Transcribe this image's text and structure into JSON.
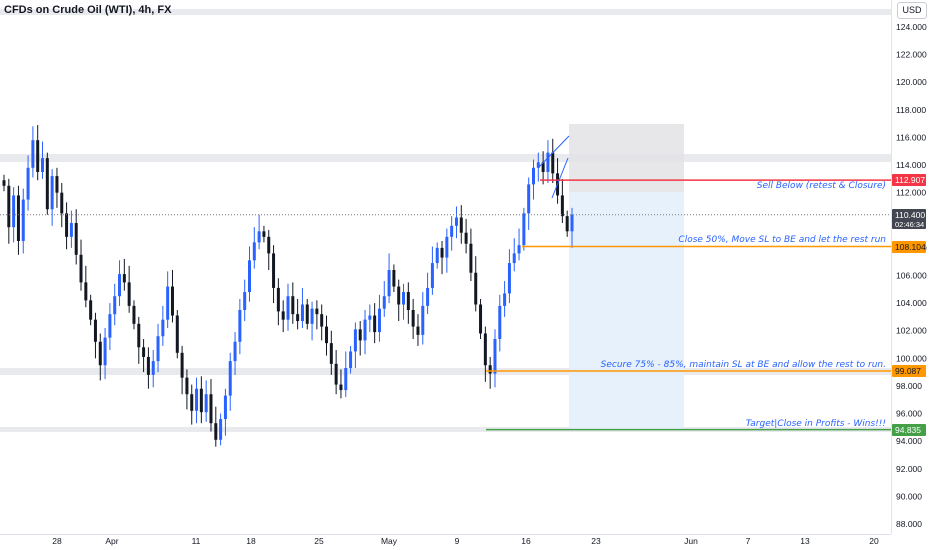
{
  "header": {
    "title": "CFDs on Crude Oil (WTI), 4h, FX",
    "currency": "USD"
  },
  "colors": {
    "bull": "#2962ff",
    "bear": "#131722",
    "sell_line": "#f23645",
    "level_line": "#ff9800",
    "target_line": "#43a047",
    "zone_fill": "#e9eaee",
    "target_zone": "#e3f0fc",
    "stop_zone": "#e3e3e6",
    "price_tag": "#434651"
  },
  "chart_data": {
    "type": "candlestick",
    "y_axis": {
      "range": [
        87.5,
        125.5
      ],
      "ticks": [
        "124.000",
        "122.000",
        "120.000",
        "118.000",
        "116.000",
        "114.000",
        "112.000",
        "110.000",
        "108.000",
        "106.000",
        "104.000",
        "102.000",
        "100.000",
        "98.000",
        "96.000",
        "94.000",
        "92.000",
        "90.000",
        "88.000"
      ],
      "tick_values": [
        124,
        122,
        120,
        118,
        116,
        114,
        112,
        110,
        108,
        106,
        104,
        102,
        100,
        98,
        96,
        94,
        92,
        90,
        88
      ]
    },
    "x_axis": {
      "ticks": [
        "28",
        "Apr",
        "11",
        "18",
        "25",
        "May",
        "9",
        "16",
        "23",
        "Jun",
        "7",
        "13",
        "20"
      ]
    },
    "close_series": [
      112.5,
      109.5,
      111.8,
      108.5,
      111.5,
      113.8,
      115.8,
      113.5,
      114.5,
      110.8,
      113.2,
      112.0,
      110.5,
      108.8,
      109.8,
      107.5,
      105.5,
      104.2,
      102.8,
      101.2,
      99.5,
      101.5,
      103.2,
      104.5,
      106.1,
      105.5,
      103.8,
      102.5,
      100.8,
      100.1,
      98.8,
      99.8,
      101.6,
      102.8,
      105.2,
      103.1,
      100.4,
      98.6,
      97.4,
      96.2,
      97.8,
      96.1,
      97.4,
      95.3,
      94.1,
      95.6,
      97.3,
      99.8,
      101.2,
      103.5,
      104.8,
      107.1,
      108.4,
      109.2,
      108.8,
      107.6,
      105.1,
      103.4,
      102.8,
      104.5,
      103.2,
      102.7,
      103.9,
      102.5,
      103.6,
      103.2,
      102.3,
      101.1,
      99.6,
      98.1,
      97.7,
      99.3,
      100.5,
      102.1,
      101.3,
      102.8,
      103.1,
      101.9,
      103.6,
      104.5,
      106.4,
      105.2,
      103.9,
      104.8,
      103.5,
      102.3,
      101.7,
      103.8,
      105.1,
      106.9,
      108.0,
      107.3,
      108.8,
      109.6,
      110.2,
      109.1,
      108.3,
      106.2,
      103.9,
      101.8,
      99.5,
      98.9,
      101.4,
      103.8,
      104.7,
      106.9,
      107.6,
      108.2,
      110.5,
      112.6,
      113.8,
      114.2,
      113.5,
      114.9,
      113.4,
      111.8,
      110.3,
      109.2,
      110.4
    ],
    "levels": [
      {
        "value": 112.907,
        "label": "112.907",
        "note": "Sell Below (retest & Closure)"
      },
      {
        "value": 108.104,
        "label": "108.104",
        "note": "Close 50%, Move SL to BE and let the rest run"
      },
      {
        "value": 99.087,
        "label": "99.087",
        "note": "Secure 75% - 85%, maintain SL at BE and allow the rest to run."
      },
      {
        "value": 94.835,
        "label": "94.835",
        "note": "Target|Close in Profits - Wins!!!"
      }
    ],
    "current_price": {
      "value": 110.4,
      "label": "110.400",
      "countdown": "02:46:34"
    }
  }
}
